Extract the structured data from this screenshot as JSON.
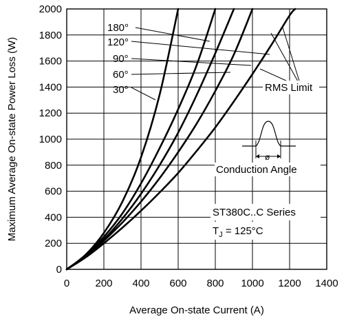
{
  "chart_data": {
    "type": "line",
    "xlabel": "Average On-state Current (A)",
    "ylabel": "Maximum Average On-state Power Loss (W)",
    "xlim": [
      0,
      1400
    ],
    "ylim": [
      0,
      2000
    ],
    "xticks": [
      "0",
      "200",
      "400",
      "600",
      "800",
      "1000",
      "1200",
      "1400"
    ],
    "yticks": [
      "0",
      "200",
      "400",
      "600",
      "800",
      "1000",
      "1200",
      "1400",
      "1600",
      "1800",
      "2000"
    ],
    "grid": true,
    "series": [
      {
        "name": "30°",
        "x": [
          0,
          100,
          200,
          300,
          400,
          500,
          600
        ],
        "y": [
          0,
          110,
          280,
          520,
          860,
          1340,
          2000
        ]
      },
      {
        "name": "60°",
        "x": [
          0,
          100,
          200,
          300,
          400,
          500,
          600,
          700,
          800
        ],
        "y": [
          0,
          105,
          250,
          430,
          660,
          930,
          1230,
          1570,
          2000
        ]
      },
      {
        "name": "90°",
        "x": [
          0,
          100,
          200,
          300,
          400,
          500,
          600,
          700,
          800,
          900
        ],
        "y": [
          0,
          100,
          230,
          390,
          580,
          800,
          1050,
          1340,
          1660,
          2000
        ]
      },
      {
        "name": "120°",
        "x": [
          0,
          100,
          200,
          300,
          400,
          500,
          600,
          700,
          800,
          900,
          1000
        ],
        "y": [
          0,
          95,
          220,
          360,
          520,
          700,
          900,
          1120,
          1370,
          1650,
          2000
        ]
      },
      {
        "name": "180°",
        "x": [
          0,
          100,
          200,
          300,
          400,
          500,
          600,
          700,
          800,
          900,
          1000,
          1100,
          1200,
          1230
        ],
        "y": [
          0,
          90,
          200,
          320,
          450,
          590,
          740,
          910,
          1090,
          1290,
          1500,
          1720,
          1950,
          2000
        ]
      }
    ],
    "annotations": {
      "rms_limit": "RMS Limit",
      "conduction_angle": "Conduction Angle",
      "phi": "ø",
      "series_name": "ST380C..C Series",
      "tj_prefix": "T",
      "tj_sub": "J",
      "tj_value": " = 125°C"
    }
  }
}
